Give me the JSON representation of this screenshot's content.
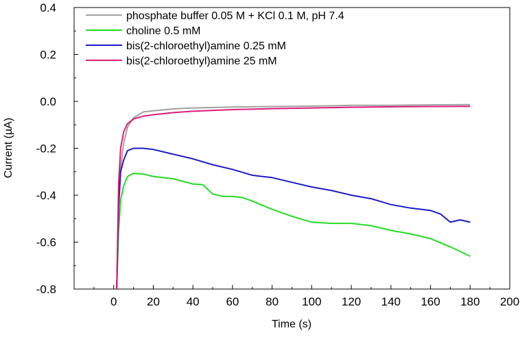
{
  "chart_data": {
    "type": "line",
    "title": "",
    "xlabel": "Time (s)",
    "ylabel": "Current (µA)",
    "xlim": [
      -20,
      200
    ],
    "ylim": [
      -0.8,
      0.4
    ],
    "xticks": [
      0,
      20,
      40,
      60,
      80,
      100,
      120,
      140,
      160,
      180,
      200
    ],
    "yticks": [
      -0.8,
      -0.6,
      -0.4,
      -0.2,
      0.0,
      0.2,
      0.4
    ],
    "xtick_labels": [
      "0",
      "20",
      "40",
      "60",
      "80",
      "100",
      "120",
      "140",
      "160",
      "180",
      "200"
    ],
    "ytick_labels": [
      "-0.8",
      "-0.6",
      "-0.4",
      "-0.2",
      "0.0",
      "0.2",
      "0.4"
    ],
    "grid": false,
    "legend_position": "top-left",
    "series": [
      {
        "name": "phosphate buffer 0.05 M + KCl 0.1 M, pH 7.4",
        "color": "#a0a0a0",
        "x": [
          1.5,
          2.5,
          3.5,
          5,
          7,
          10,
          15,
          20,
          30,
          40,
          60,
          80,
          100,
          120,
          140,
          160,
          180
        ],
        "y": [
          -0.8,
          -0.45,
          -0.28,
          -0.18,
          -0.11,
          -0.07,
          -0.045,
          -0.04,
          -0.032,
          -0.028,
          -0.024,
          -0.022,
          -0.02,
          -0.017,
          -0.017,
          -0.015,
          -0.014
        ]
      },
      {
        "name": "choline 0.5 mM",
        "color": "#22dd22",
        "x": [
          1.5,
          2.5,
          3.5,
          5,
          7,
          10,
          15,
          20,
          30,
          40,
          45,
          50,
          55,
          60,
          65,
          70,
          80,
          90,
          100,
          110,
          120,
          130,
          140,
          150,
          160,
          170,
          180
        ],
        "y": [
          -0.8,
          -0.55,
          -0.42,
          -0.36,
          -0.32,
          -0.307,
          -0.31,
          -0.32,
          -0.33,
          -0.352,
          -0.355,
          -0.395,
          -0.405,
          -0.405,
          -0.41,
          -0.425,
          -0.46,
          -0.49,
          -0.515,
          -0.52,
          -0.52,
          -0.53,
          -0.55,
          -0.565,
          -0.585,
          -0.62,
          -0.66
        ]
      },
      {
        "name": "bis(2-chloroethyl)amine 0.25 mM",
        "color": "#1a1ac8",
        "x": [
          1.5,
          2.5,
          3.5,
          5,
          7,
          10,
          15,
          20,
          30,
          40,
          50,
          60,
          70,
          80,
          90,
          100,
          110,
          120,
          130,
          140,
          150,
          160,
          165,
          170,
          175,
          180
        ],
        "y": [
          -0.8,
          -0.45,
          -0.3,
          -0.25,
          -0.21,
          -0.2,
          -0.2,
          -0.205,
          -0.225,
          -0.245,
          -0.27,
          -0.29,
          -0.315,
          -0.325,
          -0.345,
          -0.365,
          -0.38,
          -0.4,
          -0.415,
          -0.44,
          -0.455,
          -0.465,
          -0.48,
          -0.515,
          -0.505,
          -0.515
        ]
      },
      {
        "name": "bis(2-chloroethyl)amine  25 mM",
        "color": "#dd1a7a",
        "x": [
          1.5,
          2.5,
          3.5,
          5,
          7,
          10,
          15,
          20,
          30,
          40,
          60,
          80,
          100,
          120,
          140,
          160,
          180
        ],
        "y": [
          -0.8,
          -0.35,
          -0.2,
          -0.13,
          -0.095,
          -0.075,
          -0.063,
          -0.057,
          -0.048,
          -0.042,
          -0.035,
          -0.031,
          -0.028,
          -0.025,
          -0.023,
          -0.022,
          -0.021
        ]
      }
    ]
  }
}
